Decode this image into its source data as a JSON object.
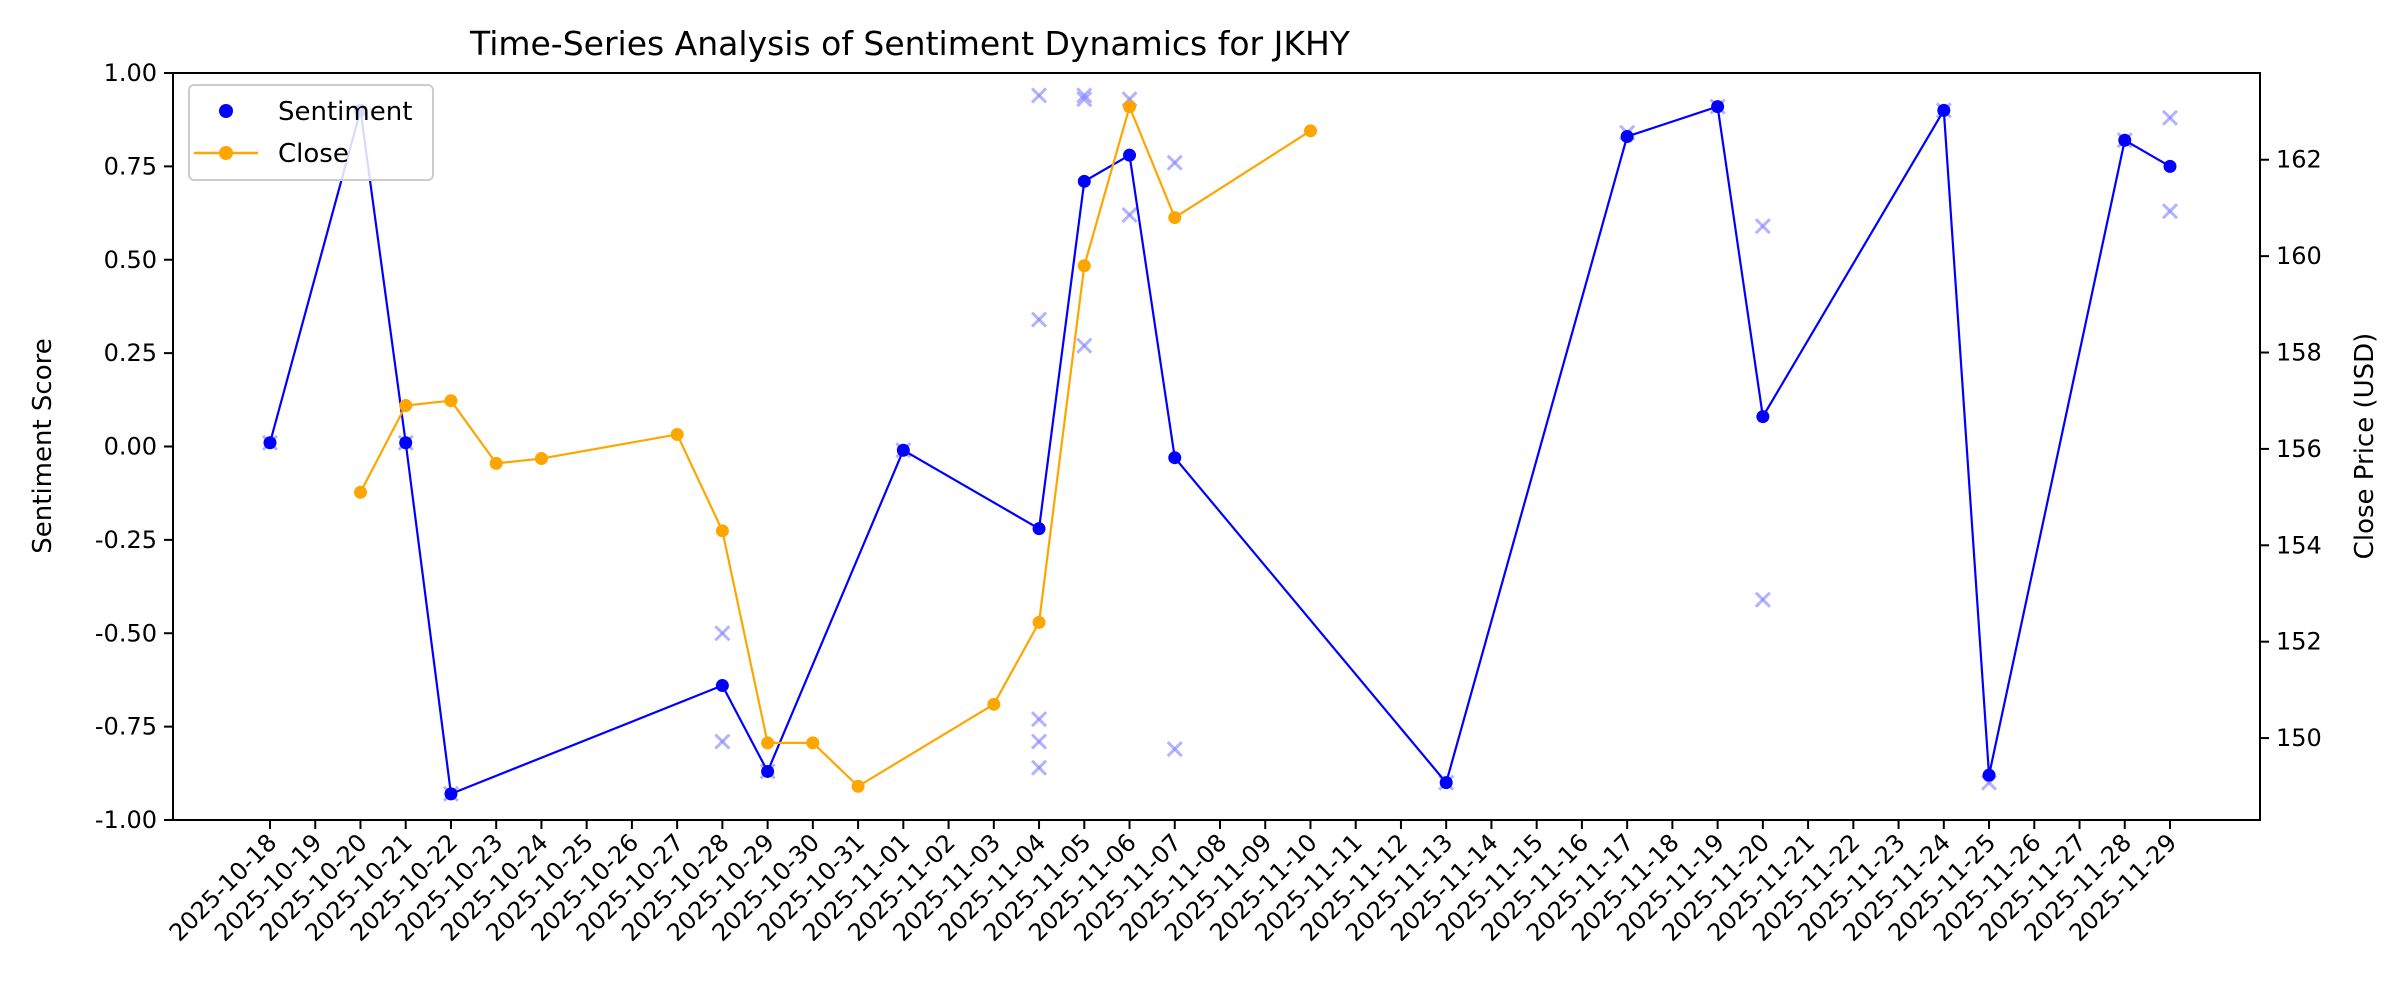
{
  "chart_data": {
    "type": "line",
    "title": "Time-Series Analysis of Sentiment Dynamics for JKHY",
    "xlabel": "",
    "ylabel": "Sentiment Score",
    "y2label": "Close Price (USD)",
    "x_range": [
      "2025-10-18",
      "2025-11-29"
    ],
    "x_ticks": [
      "2025-10-18",
      "2025-10-19",
      "2025-10-20",
      "2025-10-21",
      "2025-10-22",
      "2025-10-23",
      "2025-10-24",
      "2025-10-25",
      "2025-10-26",
      "2025-10-27",
      "2025-10-28",
      "2025-10-29",
      "2025-10-30",
      "2025-10-31",
      "2025-11-01",
      "2025-11-02",
      "2025-11-03",
      "2025-11-04",
      "2025-11-05",
      "2025-11-06",
      "2025-11-07",
      "2025-11-08",
      "2025-11-09",
      "2025-11-10",
      "2025-11-11",
      "2025-11-12",
      "2025-11-13",
      "2025-11-14",
      "2025-11-15",
      "2025-11-16",
      "2025-11-17",
      "2025-11-18",
      "2025-11-19",
      "2025-11-20",
      "2025-11-21",
      "2025-11-22",
      "2025-11-23",
      "2025-11-24",
      "2025-11-25",
      "2025-11-26",
      "2025-11-27",
      "2025-11-28",
      "2025-11-29"
    ],
    "ylim": [
      -1.0,
      1.0
    ],
    "y_ticks": [
      "-1.00",
      "-0.75",
      "-0.50",
      "-0.25",
      "0.00",
      "0.25",
      "0.50",
      "0.75",
      "1.00"
    ],
    "y2lim": [
      148.3,
      163.8
    ],
    "y2_ticks": [
      "150",
      "152",
      "154",
      "156",
      "158",
      "160",
      "162"
    ],
    "grid": false,
    "legend_position": "top-left",
    "series": [
      {
        "name": "Sentiment",
        "axis": "left",
        "color": "#0000ff",
        "marker": "circle",
        "points": [
          {
            "x": "2025-10-18",
            "y": 0.01
          },
          {
            "x": "2025-10-20",
            "y": 0.9
          },
          {
            "x": "2025-10-21",
            "y": 0.01
          },
          {
            "x": "2025-10-22",
            "y": -0.93
          },
          {
            "x": "2025-10-28",
            "y": -0.64
          },
          {
            "x": "2025-10-29",
            "y": -0.87
          },
          {
            "x": "2025-11-01",
            "y": -0.01
          },
          {
            "x": "2025-11-04",
            "y": -0.22
          },
          {
            "x": "2025-11-05",
            "y": 0.71
          },
          {
            "x": "2025-11-06",
            "y": 0.78
          },
          {
            "x": "2025-11-07",
            "y": -0.03
          },
          {
            "x": "2025-11-13",
            "y": -0.9
          },
          {
            "x": "2025-11-17",
            "y": 0.83
          },
          {
            "x": "2025-11-19",
            "y": 0.91
          },
          {
            "x": "2025-11-20",
            "y": 0.08
          },
          {
            "x": "2025-11-24",
            "y": 0.9
          },
          {
            "x": "2025-11-25",
            "y": -0.88
          },
          {
            "x": "2025-11-28",
            "y": 0.82
          },
          {
            "x": "2025-11-29",
            "y": 0.75
          }
        ]
      },
      {
        "name": "Close",
        "axis": "right",
        "color": "#ffa500",
        "marker": "circle",
        "points": [
          {
            "x": "2025-10-20",
            "y": 155.1
          },
          {
            "x": "2025-10-21",
            "y": 156.9
          },
          {
            "x": "2025-10-22",
            "y": 157.0
          },
          {
            "x": "2025-10-23",
            "y": 155.7
          },
          {
            "x": "2025-10-24",
            "y": 155.8
          },
          {
            "x": "2025-10-27",
            "y": 156.3
          },
          {
            "x": "2025-10-28",
            "y": 154.3
          },
          {
            "x": "2025-10-29",
            "y": 149.9
          },
          {
            "x": "2025-10-30",
            "y": 149.9
          },
          {
            "x": "2025-10-31",
            "y": 149.0
          },
          {
            "x": "2025-11-03",
            "y": 150.7
          },
          {
            "x": "2025-11-04",
            "y": 152.4
          },
          {
            "x": "2025-11-05",
            "y": 159.8
          },
          {
            "x": "2025-11-06",
            "y": 163.1
          },
          {
            "x": "2025-11-07",
            "y": 160.8
          },
          {
            "x": "2025-11-10",
            "y": 162.6
          }
        ]
      }
    ],
    "scatter_points": {
      "axis": "left",
      "color": "#8080ff",
      "marker": "x",
      "points": [
        {
          "x": "2025-10-18",
          "y": 0.01
        },
        {
          "x": "2025-10-20",
          "y": 0.9
        },
        {
          "x": "2025-10-21",
          "y": 0.01
        },
        {
          "x": "2025-10-22",
          "y": -0.93
        },
        {
          "x": "2025-10-28",
          "y": -0.5
        },
        {
          "x": "2025-10-28",
          "y": -0.79
        },
        {
          "x": "2025-10-29",
          "y": -0.87
        },
        {
          "x": "2025-11-01",
          "y": -0.01
        },
        {
          "x": "2025-11-04",
          "y": 0.94
        },
        {
          "x": "2025-11-04",
          "y": 0.34
        },
        {
          "x": "2025-11-04",
          "y": -0.73
        },
        {
          "x": "2025-11-04",
          "y": -0.79
        },
        {
          "x": "2025-11-04",
          "y": -0.86
        },
        {
          "x": "2025-11-05",
          "y": 0.94
        },
        {
          "x": "2025-11-05",
          "y": 0.93
        },
        {
          "x": "2025-11-05",
          "y": 0.27
        },
        {
          "x": "2025-11-06",
          "y": 0.93
        },
        {
          "x": "2025-11-06",
          "y": 0.62
        },
        {
          "x": "2025-11-07",
          "y": 0.76
        },
        {
          "x": "2025-11-07",
          "y": -0.81
        },
        {
          "x": "2025-11-13",
          "y": -0.9
        },
        {
          "x": "2025-11-17",
          "y": 0.84
        },
        {
          "x": "2025-11-19",
          "y": 0.91
        },
        {
          "x": "2025-11-20",
          "y": 0.59
        },
        {
          "x": "2025-11-20",
          "y": -0.41
        },
        {
          "x": "2025-11-24",
          "y": 0.9
        },
        {
          "x": "2025-11-25",
          "y": -0.9
        },
        {
          "x": "2025-11-28",
          "y": 0.82
        },
        {
          "x": "2025-11-29",
          "y": 0.88
        },
        {
          "x": "2025-11-29",
          "y": 0.63
        }
      ]
    }
  }
}
